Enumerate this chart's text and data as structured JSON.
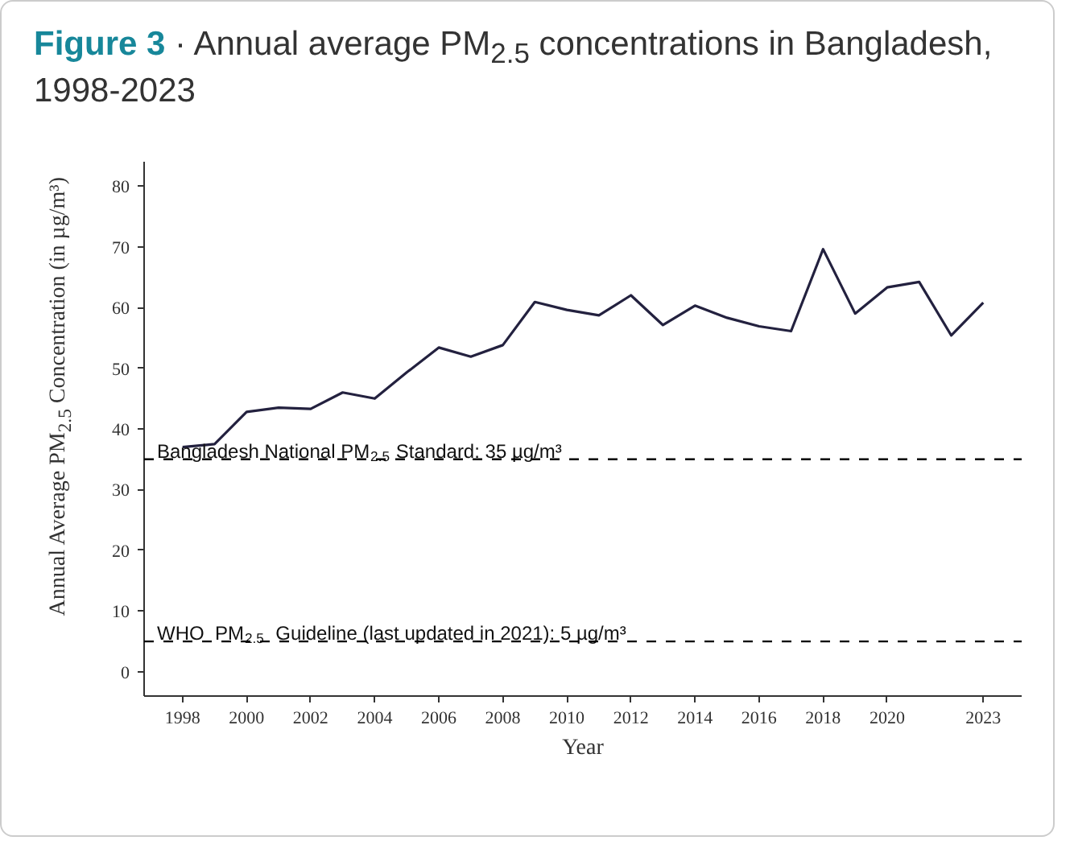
{
  "chart_data": {
    "type": "line",
    "title": "Figure 3 · Annual average PM$_{2.5}$ concentrations in Bangladesh, 1998-2023",
    "xlabel": "Year",
    "ylabel": "Annual Average  PM$_{2.5}$ Concentration (in µg/m³)",
    "x": [
      1998,
      1999,
      2000,
      2001,
      2002,
      2003,
      2004,
      2005,
      2006,
      2007,
      2008,
      2009,
      2010,
      2011,
      2012,
      2013,
      2014,
      2015,
      2016,
      2017,
      2018,
      2019,
      2020,
      2021,
      2022,
      2023
    ],
    "series": [
      {
        "color": "#23213f",
        "values": [
          37,
          37.5,
          42.8,
          43.5,
          43.3,
          46,
          45,
          49.3,
          53.4,
          51.9,
          53.8,
          60.9,
          59.6,
          58.7,
          62,
          57.1,
          60.3,
          58.3,
          56.9,
          56.1,
          69.6,
          59,
          63.3,
          64.2,
          55.4,
          60.8
        ]
      }
    ],
    "xlim": [
      1996.8,
      2024.2
    ],
    "ylim": [
      -4,
      84
    ],
    "xticks": [
      1998,
      2000,
      2002,
      2004,
      2006,
      2008,
      2010,
      2012,
      2014,
      2016,
      2018,
      2020,
      2023
    ],
    "yticks": [
      0,
      10,
      20,
      30,
      40,
      50,
      60,
      70,
      80
    ],
    "ref_lines": [
      {
        "axis": "y",
        "value": 35,
        "label": "Bangladesh National PM$_{2.5}$ Standard: 35 µg/m³",
        "line_style": "dashed",
        "color": "#000000"
      },
      {
        "axis": "y",
        "value": 5,
        "label": "WHO  PM$_{2.5}$  Guideline (last updated in 2021): 5 µg/m³",
        "line_style": "dashed",
        "color": "#000000"
      }
    ],
    "line_style": "solid"
  }
}
